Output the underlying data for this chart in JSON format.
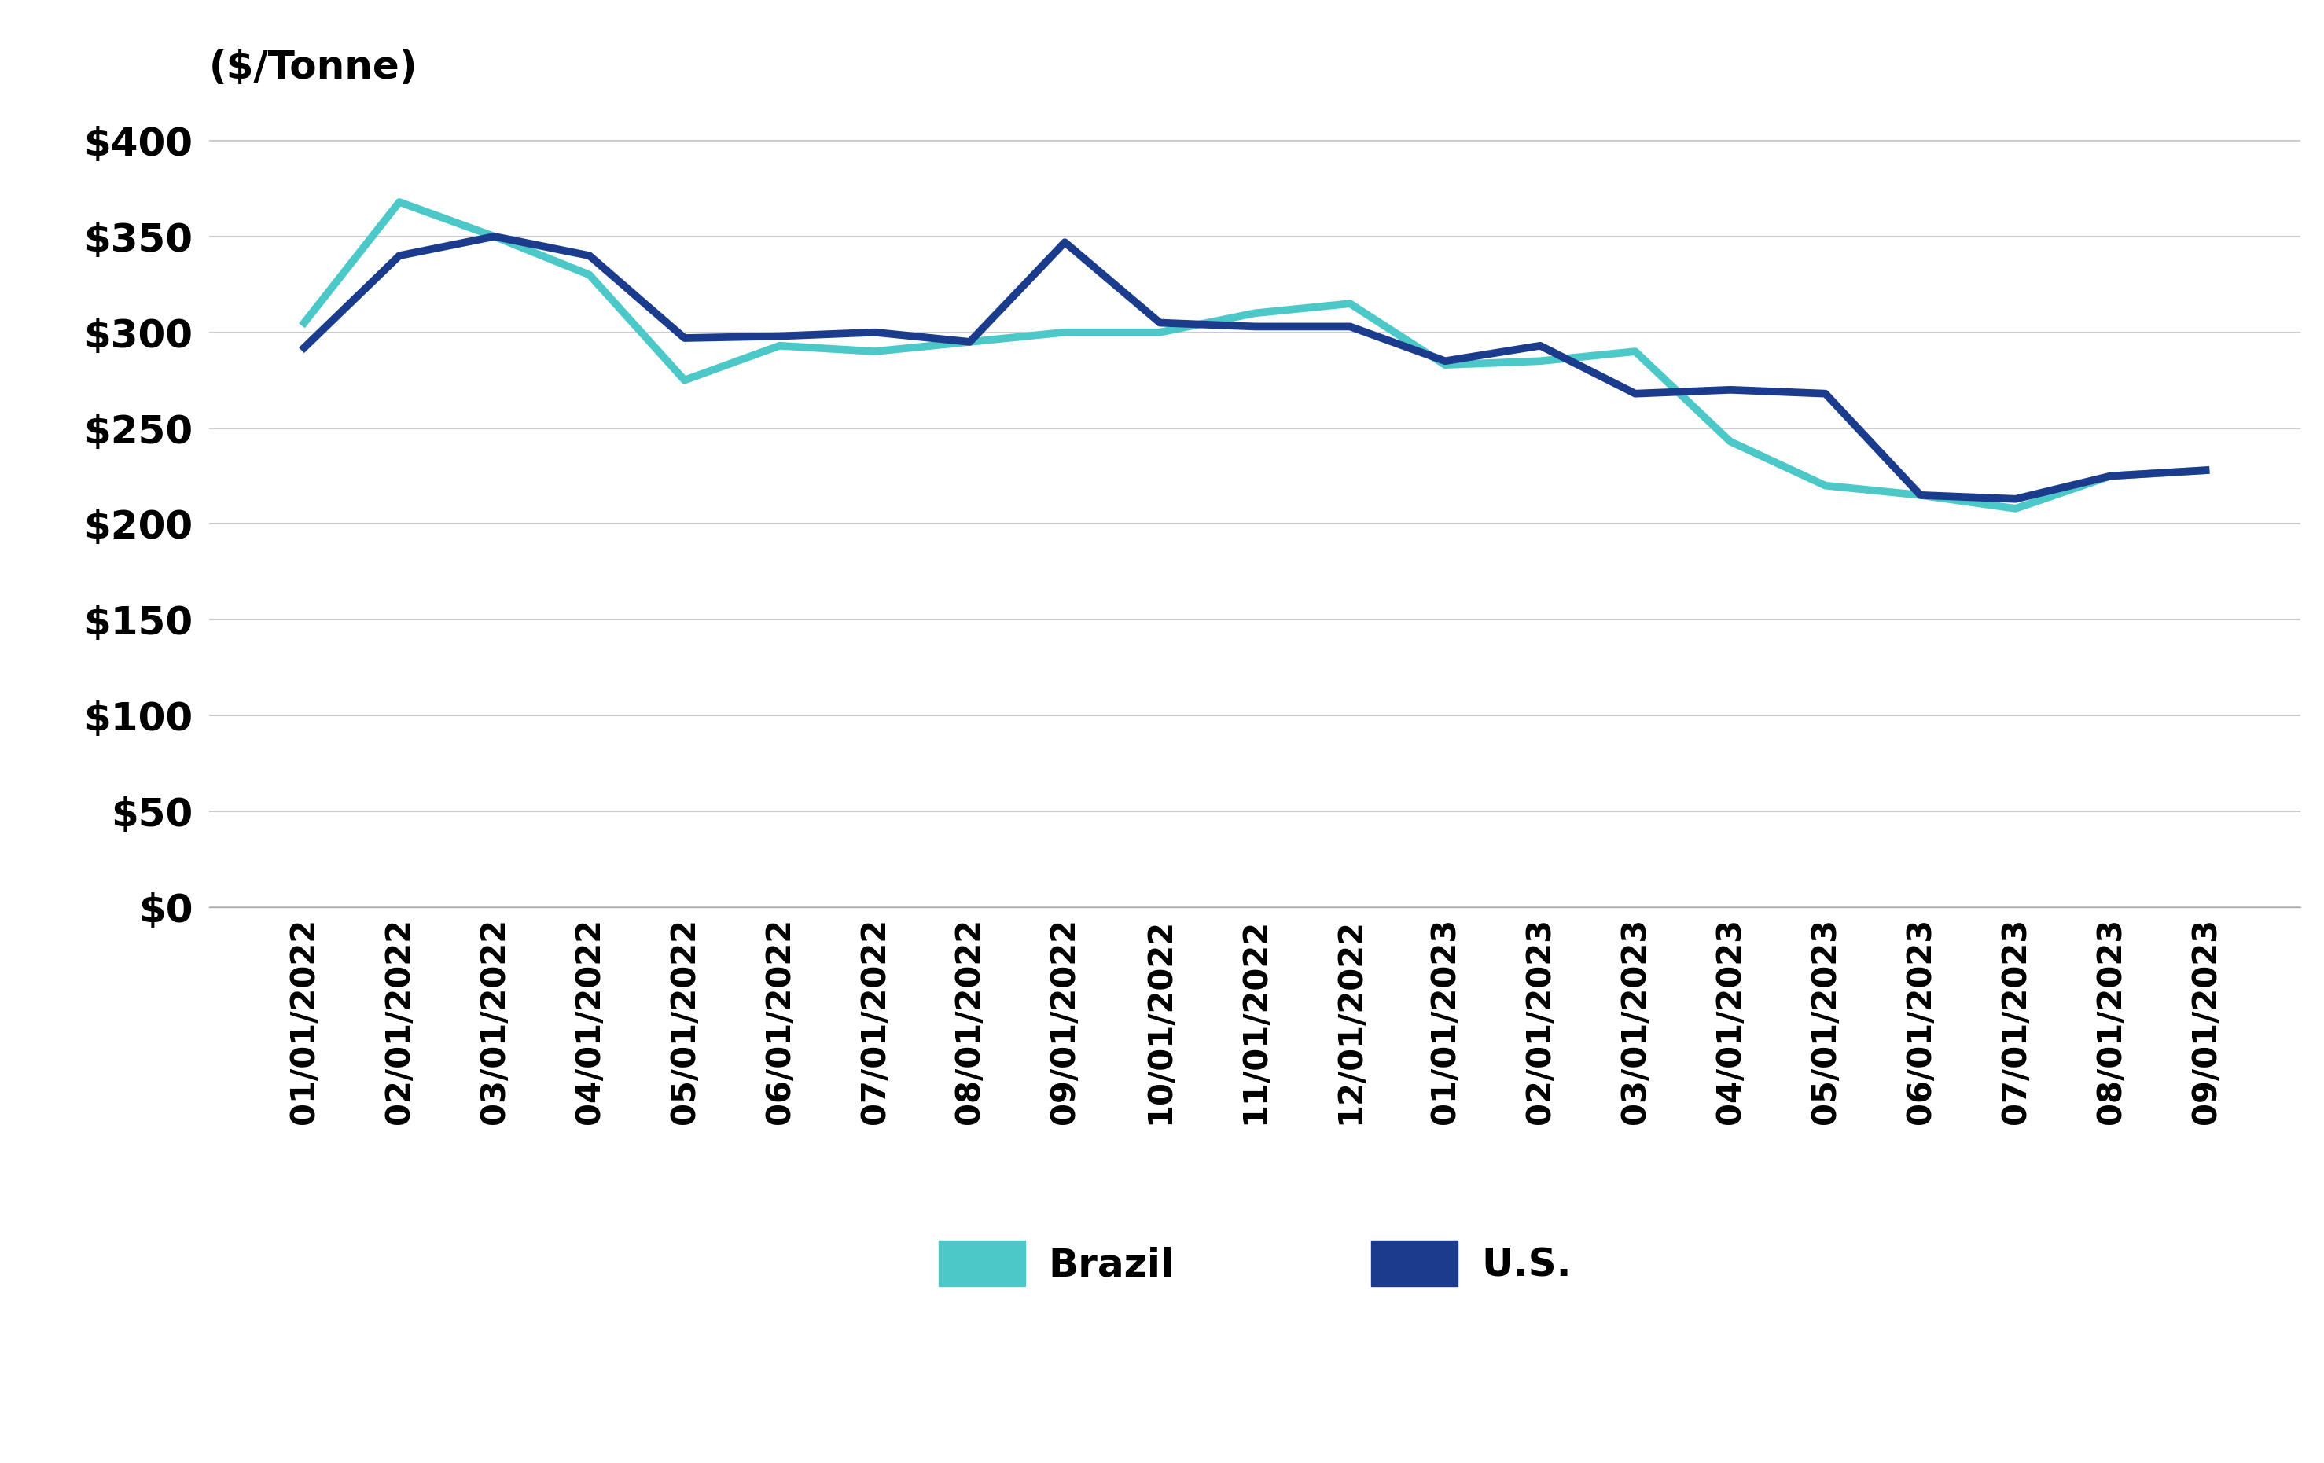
{
  "dates": [
    "01/01/2022",
    "02/01/2022",
    "03/01/2022",
    "04/01/2022",
    "05/01/2022",
    "06/01/2022",
    "07/01/2022",
    "08/01/2022",
    "09/01/2022",
    "10/01/2022",
    "11/01/2022",
    "12/01/2022",
    "01/01/2023",
    "02/01/2023",
    "03/01/2023",
    "04/01/2023",
    "05/01/2023",
    "06/01/2023",
    "07/01/2023",
    "08/01/2023",
    "09/01/2023"
  ],
  "brazil": [
    305,
    368,
    350,
    330,
    275,
    293,
    290,
    295,
    300,
    300,
    310,
    315,
    283,
    285,
    290,
    243,
    220,
    215,
    208,
    225,
    228
  ],
  "us": [
    292,
    340,
    350,
    340,
    297,
    298,
    300,
    295,
    347,
    305,
    303,
    303,
    285,
    293,
    268,
    270,
    268,
    215,
    213,
    225,
    228
  ],
  "brazil_color": "#4DC8C8",
  "us_color": "#1B3C8C",
  "brazil_label": "Brazil",
  "us_label": "U.S.",
  "ylabel": "($/Tonne)",
  "ylim": [
    0,
    420
  ],
  "yticks": [
    0,
    50,
    100,
    150,
    200,
    250,
    300,
    350,
    400
  ],
  "line_width": 7,
  "background_color": "#ffffff",
  "grid_color": "#cccccc",
  "legend_fontsize": 36,
  "tick_fontsize": 36,
  "ylabel_fontsize": 36,
  "xtick_fontsize": 30
}
